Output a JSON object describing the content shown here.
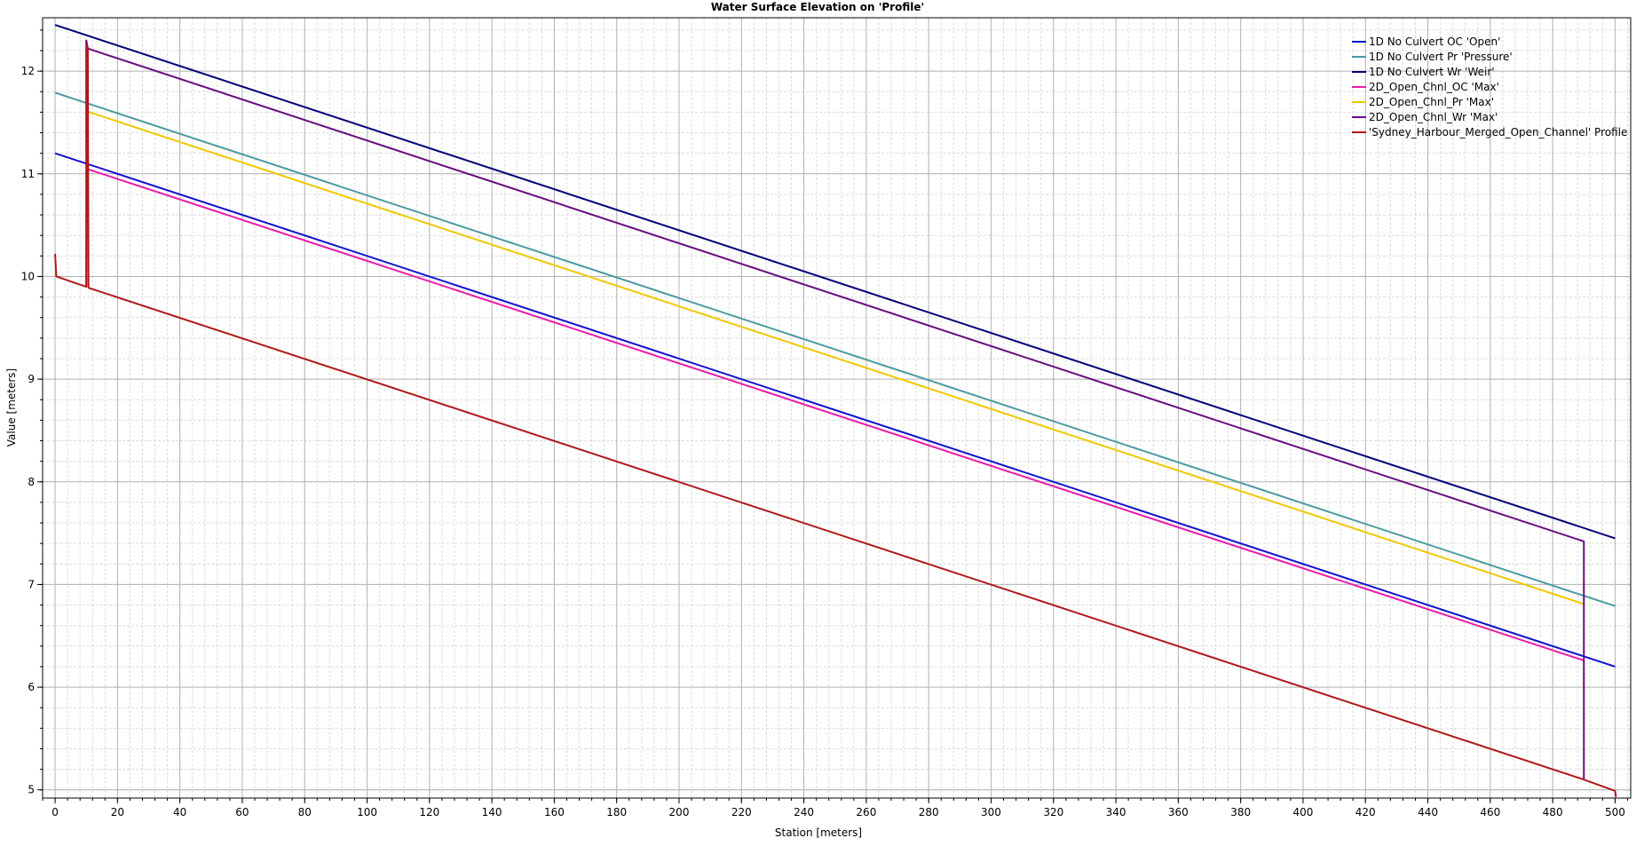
{
  "chart_data": {
    "type": "line",
    "title": "Water Surface Elevation on 'Profile'",
    "xlabel": "Station [meters]",
    "ylabel": "Value [meters]",
    "xlim": [
      -4,
      505
    ],
    "ylim": [
      4.92,
      12.52
    ],
    "x_ticks": [
      0,
      20,
      40,
      60,
      80,
      100,
      120,
      140,
      160,
      180,
      200,
      220,
      240,
      260,
      280,
      300,
      320,
      340,
      360,
      380,
      400,
      420,
      440,
      460,
      480,
      500
    ],
    "y_ticks": [
      5,
      6,
      7,
      8,
      9,
      10,
      11,
      12
    ],
    "x_minor_step": 4,
    "y_minor_step": 0.2,
    "grid": true,
    "legend_position": "top-right",
    "series": [
      {
        "name": "1D No Culvert OC 'Open'",
        "color": "#1010d0",
        "points": [
          [
            0,
            11.2
          ],
          [
            500,
            6.2
          ]
        ]
      },
      {
        "name": "1D No Culvert Pr 'Pressure'",
        "color": "#4a9aa0",
        "points": [
          [
            0,
            11.79
          ],
          [
            500,
            6.79
          ]
        ]
      },
      {
        "name": "1D No Culvert Wr 'Weir'",
        "color": "#00007a",
        "points": [
          [
            0,
            12.45
          ],
          [
            500,
            7.45
          ]
        ]
      },
      {
        "name": "2D_Open_Chnl_OC 'Max'",
        "color": "#ee1aa8",
        "points": [
          [
            10,
            11.05
          ],
          [
            490,
            6.26
          ]
        ]
      },
      {
        "name": "2D_Open_Chnl_Pr 'Max'",
        "color": "#f0c800",
        "points": [
          [
            10,
            11.61
          ],
          [
            490,
            6.81
          ]
        ]
      },
      {
        "name": "2D_Open_Chnl_Wr 'Max'",
        "color": "#6a0a80",
        "points": [
          [
            10,
            9.9
          ],
          [
            10,
            12.3
          ],
          [
            10.5,
            12.22
          ],
          [
            490,
            7.42
          ],
          [
            490,
            5.1
          ]
        ]
      },
      {
        "name": "'Sydney_Harbour_Merged_Open_Channel' Profile",
        "color": "#b01818",
        "points": [
          [
            0,
            10.22
          ],
          [
            0.4,
            10.0
          ],
          [
            10,
            9.9
          ],
          [
            10.2,
            12.25
          ],
          [
            10.5,
            12.2
          ],
          [
            10.7,
            9.89
          ],
          [
            490,
            5.1
          ],
          [
            500,
            4.99
          ],
          [
            500.3,
            4.93
          ]
        ]
      }
    ]
  }
}
